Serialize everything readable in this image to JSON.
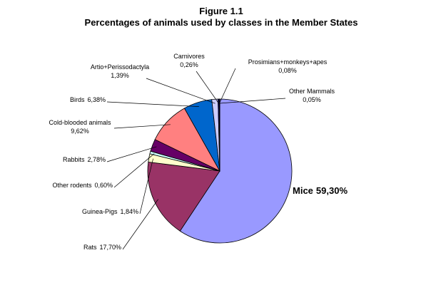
{
  "chart_data": {
    "type": "pie",
    "title": "Figure 1.1",
    "subtitle": "Percentages of animals used by classes in the Member States",
    "categories": [
      "Mice",
      "Rats",
      "Guinea-Pigs",
      "Other rodents",
      "Rabbits",
      "Cold-blooded animals",
      "Birds",
      "Artio+Perissodactyla",
      "Carnivores",
      "Prosimians+monkeys+apes",
      "Other Mammals"
    ],
    "values": [
      59.3,
      17.7,
      1.84,
      0.6,
      2.78,
      9.62,
      6.38,
      1.39,
      0.26,
      0.08,
      0.05
    ],
    "value_labels": [
      "59,30%",
      "17,70%",
      "1,84%",
      "0,60%",
      "2,78%",
      "9,62%",
      "6,38%",
      "1,39%",
      "0,26%",
      "0,08%",
      "0,05%"
    ],
    "colors": [
      "#9999ff",
      "#993366",
      "#ffffcc",
      "#ccffff",
      "#660066",
      "#ff8080",
      "#0066cc",
      "#ccccff",
      "#000080",
      "#ff00ff",
      "#ffff00"
    ]
  }
}
